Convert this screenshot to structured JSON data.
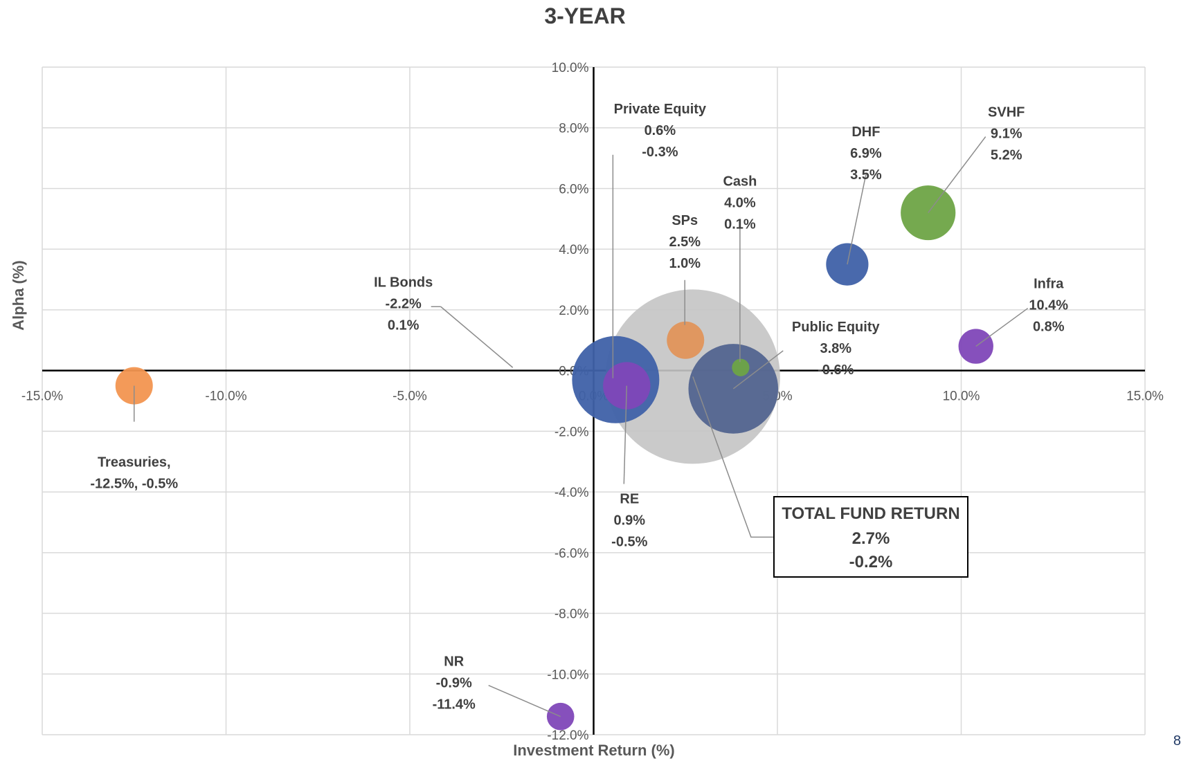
{
  "page_number": "8",
  "chart_data": {
    "type": "scatter",
    "title": "3-YEAR",
    "xlabel": "Investment Return (%)",
    "ylabel": "Alpha (%)",
    "xlim": [
      -15,
      15
    ],
    "ylim": [
      -12,
      10
    ],
    "x_ticks": [
      -15,
      -10,
      -5,
      0,
      5,
      10,
      15
    ],
    "y_ticks": [
      -12,
      -10,
      -8,
      -6,
      -4,
      -2,
      0,
      2,
      4,
      6,
      8,
      10
    ],
    "x_tick_labels": [
      "-15.0%",
      "-10.0%",
      "-5.0%",
      "0.0%",
      "5.0%",
      "10.0%",
      "15.0%"
    ],
    "y_tick_labels": [
      "-12.0%",
      "-10.0%",
      "-8.0%",
      "-6.0%",
      "-4.0%",
      "-2.0%",
      "0.0%",
      "2.0%",
      "4.0%",
      "6.0%",
      "8.0%",
      "10.0%"
    ],
    "grid": true,
    "legend": "none",
    "points": [
      {
        "name": "Total Fund",
        "x": 2.7,
        "y": -0.2,
        "size": 140,
        "color": "#c4c4c4",
        "label_lines": []
      },
      {
        "name": "Private Equity",
        "x": 0.6,
        "y": -0.3,
        "size": 70,
        "color": "#3f61a8",
        "label_lines": [
          "Private Equity",
          "0.6%",
          "-0.3%"
        ]
      },
      {
        "name": "Public Equity",
        "x": 3.8,
        "y": -0.6,
        "size": 72,
        "color": "#52648f",
        "label_lines": [
          "Public Equity",
          "3.8%",
          "-0.6%"
        ]
      },
      {
        "name": "RE",
        "x": 0.9,
        "y": -0.5,
        "size": 38,
        "color": "#8047b8",
        "label_lines": [
          "RE",
          "0.9%",
          "-0.5%"
        ]
      },
      {
        "name": "SPs",
        "x": 2.5,
        "y": 1.0,
        "size": 30,
        "color": "#e0935a",
        "label_lines": [
          "SPs",
          "2.5%",
          "1.0%"
        ]
      },
      {
        "name": "Cash",
        "x": 4.0,
        "y": 0.1,
        "size": 14,
        "color": "#6ea446",
        "label_lines": [
          "Cash",
          "4.0%",
          "0.1%"
        ]
      },
      {
        "name": "DHF",
        "x": 6.9,
        "y": 3.5,
        "size": 34,
        "color": "#3f61a8",
        "label_lines": [
          "DHF",
          "6.9%",
          "3.5%"
        ]
      },
      {
        "name": "SVHF",
        "x": 9.1,
        "y": 5.2,
        "size": 44,
        "color": "#6ea446",
        "label_lines": [
          "SVHF",
          "9.1%",
          "5.2%"
        ]
      },
      {
        "name": "Infra",
        "x": 10.4,
        "y": 0.8,
        "size": 28,
        "color": "#8047b8",
        "label_lines": [
          "Infra",
          "10.4%",
          "0.8%"
        ]
      },
      {
        "name": "IL Bonds",
        "x": -2.2,
        "y": 0.1,
        "size": 0,
        "color": "#c4c4c4",
        "label_lines": [
          "IL Bonds",
          "-2.2%",
          "0.1%"
        ]
      },
      {
        "name": "Treasuries",
        "x": -12.5,
        "y": -0.5,
        "size": 30,
        "color": "#f29550",
        "label_lines": [
          "Treasuries,",
          "-12.5%, -0.5%"
        ]
      },
      {
        "name": "NR",
        "x": -0.9,
        "y": -11.4,
        "size": 22,
        "color": "#8047b8",
        "label_lines": [
          "NR",
          "-0.9%",
          "-11.4%"
        ]
      }
    ],
    "total_fund_box": [
      "TOTAL FUND RETURN",
      "2.7%",
      "-0.2%"
    ]
  }
}
